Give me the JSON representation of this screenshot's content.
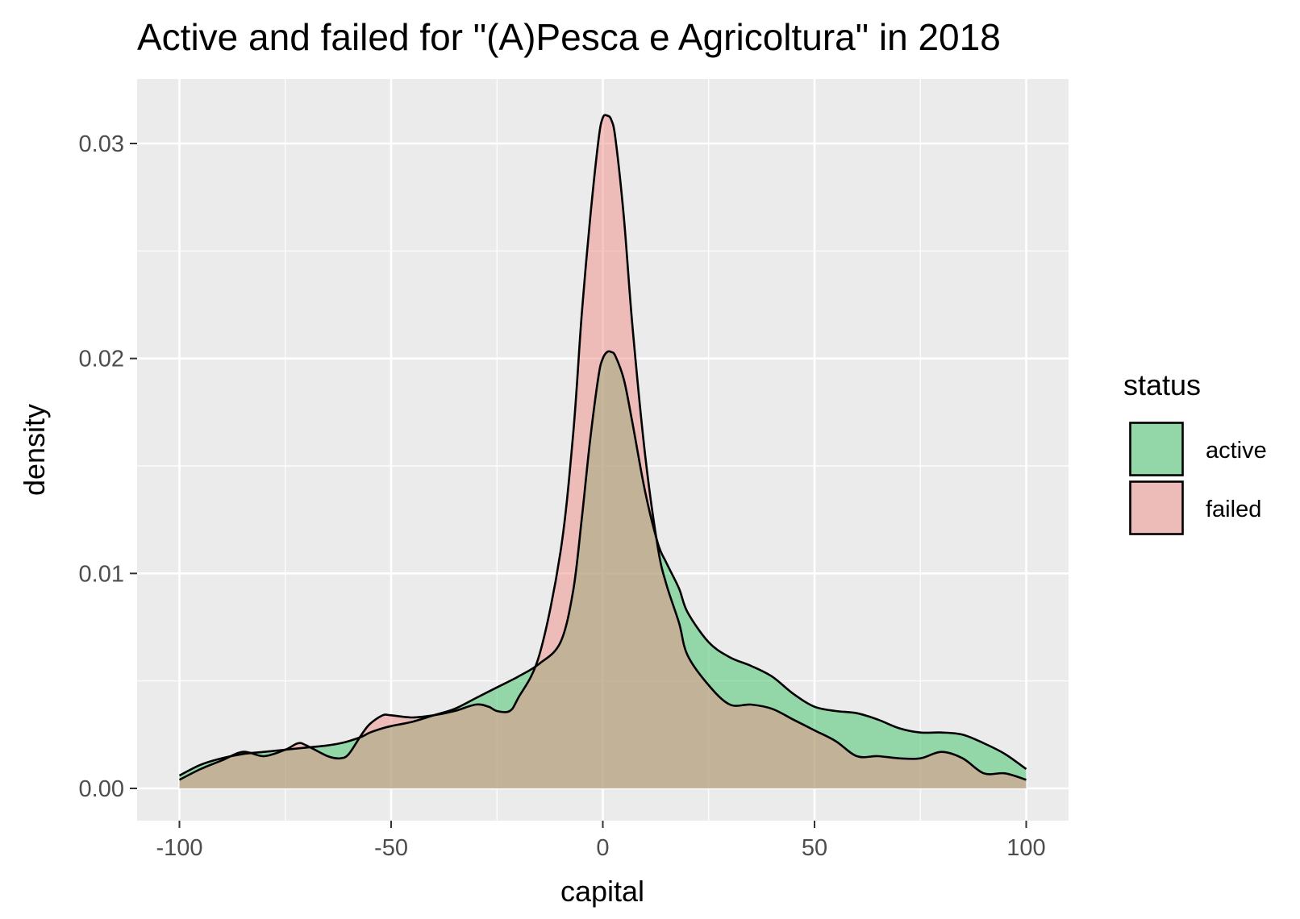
{
  "chart_data": {
    "type": "area",
    "title": "Active and failed for \"(A)Pesca e Agricoltura\" in 2018",
    "xlabel": "capital",
    "ylabel": "density",
    "xlim": [
      -110,
      110
    ],
    "ylim": [
      -0.0015,
      0.033
    ],
    "x_ticks": [
      -100,
      -50,
      0,
      50,
      100
    ],
    "x_tick_labels": [
      "-100",
      "-50",
      "0",
      "50",
      "100"
    ],
    "y_ticks": [
      0.0,
      0.01,
      0.02,
      0.03
    ],
    "y_tick_labels": [
      "0.00",
      "0.01",
      "0.02",
      "0.03"
    ],
    "grid": true,
    "legend": {
      "title": "status",
      "position": "right"
    },
    "series": [
      {
        "name": "active",
        "color": "#3bc165",
        "x": [
          -100,
          -95,
          -90,
          -85,
          -80,
          -75,
          -70,
          -65,
          -62,
          -60,
          -57,
          -55,
          -52,
          -50,
          -45,
          -40,
          -35,
          -30,
          -25,
          -20,
          -15,
          -10,
          -7,
          -5,
          -3,
          -1,
          0,
          1,
          2,
          3,
          5,
          7,
          10,
          13,
          15,
          18,
          20,
          25,
          30,
          35,
          40,
          45,
          50,
          55,
          60,
          65,
          70,
          75,
          80,
          85,
          90,
          95,
          100
        ],
        "y": [
          0.0006,
          0.0011,
          0.0014,
          0.0016,
          0.0017,
          0.0018,
          0.0019,
          0.002,
          0.0021,
          0.0022,
          0.0024,
          0.0026,
          0.0028,
          0.0029,
          0.0031,
          0.0034,
          0.0037,
          0.0042,
          0.0047,
          0.0052,
          0.0058,
          0.0068,
          0.0092,
          0.0125,
          0.0162,
          0.0192,
          0.02,
          0.0203,
          0.0203,
          0.0201,
          0.019,
          0.017,
          0.0138,
          0.0114,
          0.0105,
          0.0093,
          0.0082,
          0.0068,
          0.0061,
          0.0057,
          0.0052,
          0.0044,
          0.0038,
          0.0036,
          0.0035,
          0.0032,
          0.0028,
          0.0026,
          0.0026,
          0.0025,
          0.0021,
          0.0016,
          0.0009
        ]
      },
      {
        "name": "failed",
        "color": "#f28e86",
        "x": [
          -100,
          -95,
          -90,
          -85,
          -80,
          -75,
          -72,
          -70,
          -65,
          -62,
          -60,
          -57,
          -55,
          -52,
          -50,
          -45,
          -40,
          -35,
          -30,
          -27,
          -25,
          -22,
          -20,
          -15,
          -10,
          -7,
          -5,
          -3,
          -1,
          0,
          1,
          2,
          3,
          5,
          7,
          10,
          13,
          15,
          18,
          20,
          25,
          30,
          35,
          40,
          45,
          50,
          55,
          60,
          65,
          70,
          75,
          80,
          85,
          90,
          95,
          100
        ],
        "y": [
          0.0004,
          0.0009,
          0.0013,
          0.0017,
          0.0015,
          0.0018,
          0.0021,
          0.002,
          0.0015,
          0.0014,
          0.0016,
          0.0025,
          0.003,
          0.0034,
          0.0034,
          0.0033,
          0.0034,
          0.0036,
          0.0039,
          0.0038,
          0.0036,
          0.0036,
          0.0042,
          0.0062,
          0.011,
          0.0165,
          0.022,
          0.0265,
          0.0302,
          0.0312,
          0.0313,
          0.0311,
          0.0302,
          0.0265,
          0.0215,
          0.0155,
          0.0112,
          0.0095,
          0.0077,
          0.0062,
          0.0048,
          0.0039,
          0.0039,
          0.0037,
          0.0032,
          0.0027,
          0.0022,
          0.0015,
          0.0015,
          0.0014,
          0.0014,
          0.0017,
          0.0014,
          0.0007,
          0.0007,
          0.0004
        ]
      }
    ]
  }
}
